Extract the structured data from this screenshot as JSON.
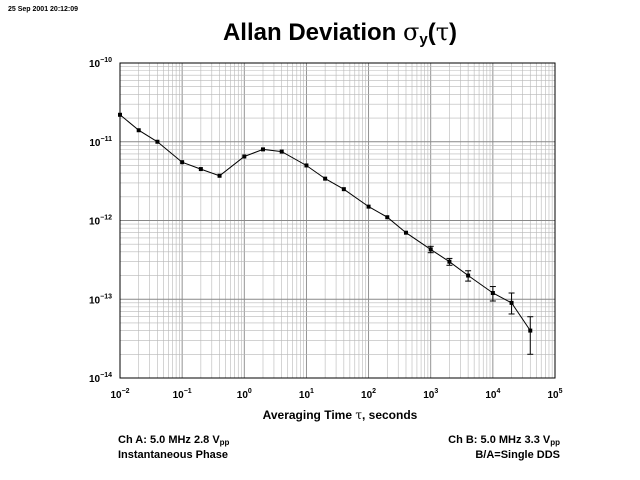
{
  "timestamp": "25 Sep 2001 20:12:09",
  "title": {
    "main": "Allan Deviation ",
    "sigma": "σ",
    "sub": "y",
    "paren_open": "(",
    "tau": "τ",
    "paren_close": ")"
  },
  "xlabel": {
    "pre": "Averaging Time ",
    "tau": "τ",
    "post": ", seconds"
  },
  "footer": {
    "left_line1": "Ch A: 5.0 MHz 2.8 V",
    "left_line1_sub": "pp",
    "left_line2": "Instantaneous Phase",
    "right_line1": "Ch B: 5.0 MHz 3.3 V",
    "right_line1_sub": "pp",
    "right_line2": "B/A=Single DDS"
  },
  "chart_data": {
    "type": "line",
    "title": "Allan Deviation σy(τ)",
    "xlabel": "Averaging Time τ, seconds",
    "ylabel": "",
    "xscale": "log",
    "yscale": "log",
    "xlim": [
      0.01,
      100000
    ],
    "ylim": [
      1e-14,
      1e-10
    ],
    "grid": true,
    "x_ticks": [
      {
        "value": 0.01,
        "base": "10",
        "exp": "−2"
      },
      {
        "value": 0.1,
        "base": "10",
        "exp": "−1"
      },
      {
        "value": 1,
        "base": "10",
        "exp": "0"
      },
      {
        "value": 10,
        "base": "10",
        "exp": "1"
      },
      {
        "value": 100,
        "base": "10",
        "exp": "2"
      },
      {
        "value": 1000,
        "base": "10",
        "exp": "3"
      },
      {
        "value": 10000,
        "base": "10",
        "exp": "4"
      },
      {
        "value": 100000,
        "base": "10",
        "exp": "5"
      }
    ],
    "y_ticks": [
      {
        "value": 1e-10,
        "base": "10",
        "exp": "−10"
      },
      {
        "value": 1e-11,
        "base": "10",
        "exp": "−11"
      },
      {
        "value": 1e-12,
        "base": "10",
        "exp": "−12"
      },
      {
        "value": 1e-13,
        "base": "10",
        "exp": "−13"
      },
      {
        "value": 1e-14,
        "base": "10",
        "exp": "−14"
      }
    ],
    "series": [
      {
        "x": [
          0.01,
          0.02,
          0.04,
          0.1,
          0.2,
          0.4,
          1,
          2,
          4,
          10,
          20,
          40,
          100,
          200,
          400,
          1000,
          2000,
          4000,
          10000,
          20000,
          40000
        ],
        "y": [
          2.2e-11,
          1.4e-11,
          1e-11,
          5.5e-12,
          4.5e-12,
          3.7e-12,
          6.5e-12,
          8e-12,
          7.5e-12,
          5e-12,
          3.4e-12,
          2.5e-12,
          1.5e-12,
          1.1e-12,
          7e-13,
          4.3e-13,
          3e-13,
          2e-13,
          1.2e-13,
          9e-14,
          4e-14
        ],
        "err_low": [
          null,
          null,
          null,
          null,
          null,
          null,
          null,
          null,
          null,
          null,
          null,
          null,
          null,
          null,
          null,
          3.9e-13,
          2.7e-13,
          1.7e-13,
          9.5e-14,
          6.5e-14,
          2e-14
        ],
        "err_high": [
          null,
          null,
          null,
          null,
          null,
          null,
          null,
          null,
          null,
          null,
          null,
          null,
          null,
          null,
          null,
          4.7e-13,
          3.3e-13,
          2.3e-13,
          1.45e-13,
          1.2e-13,
          6e-14
        ]
      }
    ]
  }
}
